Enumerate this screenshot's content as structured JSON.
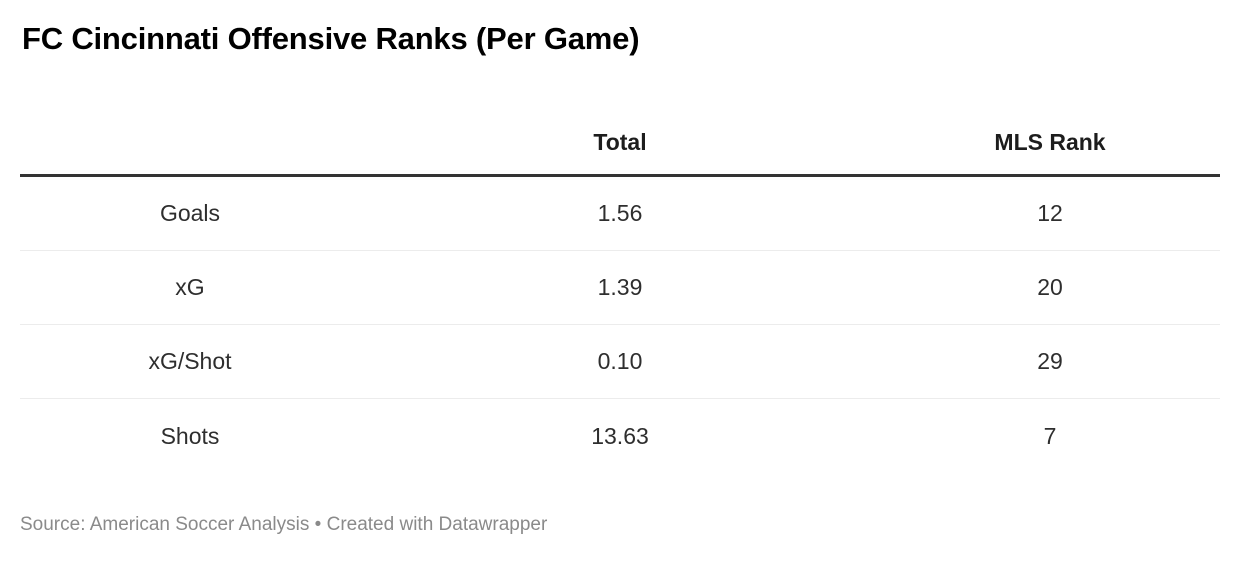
{
  "title": "FC Cincinnati Offensive Ranks (Per Game)",
  "table": {
    "columns": [
      "",
      "Total",
      "MLS Rank"
    ],
    "rows": [
      {
        "label": "Goals",
        "total": "1.56",
        "rank": "12"
      },
      {
        "label": "xG",
        "total": "1.39",
        "rank": "20"
      },
      {
        "label": "xG/Shot",
        "total": "0.10",
        "rank": "29"
      },
      {
        "label": "Shots",
        "total": "13.63",
        "rank": "7"
      }
    ]
  },
  "footer": {
    "source_label": "Source:",
    "source_name": "American Soccer Analysis",
    "separator": "•",
    "credit_prefix": "Created with",
    "credit_name": "Datawrapper"
  },
  "colors": {
    "title-color": "#000000",
    "header-text": "#1d1d1d",
    "cell-text": "#2e2e2e",
    "header-rule": "#333333",
    "divider": "#ececec",
    "footer-text": "#8a8a8a",
    "bg": "#ffffff"
  },
  "chart_data": {
    "type": "table",
    "title": "FC Cincinnati Offensive Ranks (Per Game)",
    "columns": [
      "",
      "Total",
      "MLS Rank"
    ],
    "rows": [
      [
        "Goals",
        1.56,
        12
      ],
      [
        "xG",
        1.39,
        20
      ],
      [
        "xG/Shot",
        0.1,
        29
      ],
      [
        "Shots",
        13.63,
        7
      ]
    ],
    "source": "American Soccer Analysis",
    "credit": "Created with Datawrapper",
    "layout": {
      "first_column_align": "center",
      "value_columns_align": "center",
      "grid": "horizontal-dividers"
    }
  }
}
